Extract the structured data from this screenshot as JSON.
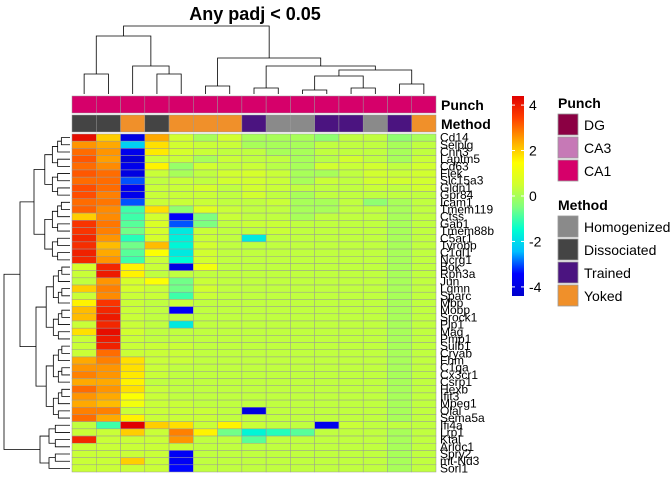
{
  "chart_data": {
    "type": "heatmap",
    "title": "Any padj < 0.05",
    "annotation_rows": [
      "Punch",
      "Method"
    ],
    "columns": [
      {
        "punch": "CA1",
        "method": "Dissociated"
      },
      {
        "punch": "CA1",
        "method": "Dissociated"
      },
      {
        "punch": "CA1",
        "method": "Yoked"
      },
      {
        "punch": "CA1",
        "method": "Dissociated"
      },
      {
        "punch": "CA1",
        "method": "Yoked"
      },
      {
        "punch": "CA1",
        "method": "Yoked"
      },
      {
        "punch": "CA1",
        "method": "Yoked"
      },
      {
        "punch": "CA1",
        "method": "Trained"
      },
      {
        "punch": "CA1",
        "method": "Homogenized"
      },
      {
        "punch": "CA1",
        "method": "Homogenized"
      },
      {
        "punch": "CA1",
        "method": "Trained"
      },
      {
        "punch": "CA1",
        "method": "Trained"
      },
      {
        "punch": "CA1",
        "method": "Homogenized"
      },
      {
        "punch": "CA1",
        "method": "Trained"
      },
      {
        "punch": "CA1",
        "method": "Yoked"
      }
    ],
    "genes": [
      "Cd14",
      "Selplg",
      "Cnn3",
      "Laptm5",
      "Cd63",
      "Flek",
      "Slc15a3",
      "Gldn1",
      "Gpr84",
      "Icam1",
      "Tmem119",
      "Ctss",
      "Gab1",
      "Tmem88b",
      "C5ar1",
      "Tyrobp",
      "C1ql1",
      "Ncrg1",
      "Bok",
      "Rph3a",
      "Jun",
      "Lgmn",
      "Sparc",
      "Mbp",
      "Mobp",
      "Srock1",
      "Plp1",
      "Mag",
      "Pmp1",
      "Sulb1",
      "Cryab",
      "Fhm",
      "C1qa",
      "Cx3cr1",
      "Csrp1",
      "Hexb",
      "Ifit3",
      "Mpeg1",
      "Olal",
      "Sema5a",
      "Ifi4a",
      "Lrp1",
      "Ktal",
      "Arldc1",
      "Spry2",
      "mt-Nd3",
      "Sorl1"
    ],
    "values": [
      [
        4.2,
        2.0,
        -4.0,
        2.4,
        0.5,
        0.0,
        0.5,
        0.0,
        0.0,
        0.0,
        -0.3,
        0.3,
        0.3,
        -0.3,
        0.0
      ],
      [
        2.6,
        2.4,
        -2.2,
        1.8,
        0.5,
        0.4,
        0.4,
        0.0,
        0.0,
        0.0,
        0.3,
        0.3,
        0.3,
        0.0,
        0.3
      ],
      [
        3.0,
        2.6,
        -3.8,
        1.7,
        0.6,
        0.4,
        0.3,
        0.3,
        0.0,
        0.0,
        0.3,
        0.3,
        0.3,
        0.0,
        0.3
      ],
      [
        3.2,
        2.5,
        -4.2,
        0.4,
        0.4,
        0.0,
        0.4,
        0.3,
        0.3,
        0.0,
        0.2,
        0.5,
        0.3,
        0.0,
        0.4
      ],
      [
        3.0,
        2.7,
        -3.8,
        1.6,
        -0.2,
        0.5,
        0.3,
        0.4,
        0.2,
        0.0,
        0.5,
        0.4,
        0.5,
        0.3,
        0.5
      ],
      [
        3.2,
        3.0,
        -4.0,
        0.4,
        0.0,
        0.3,
        0.5,
        0.6,
        0.4,
        0.0,
        0.0,
        0.3,
        0.5,
        0.4,
        0.5
      ],
      [
        3.0,
        3.0,
        -3.0,
        0.3,
        0.4,
        0.3,
        0.5,
        0.5,
        0.4,
        0.0,
        0.4,
        0.3,
        0.5,
        0.5,
        0.5
      ],
      [
        3.3,
        3.0,
        -3.8,
        0.4,
        0.4,
        0.6,
        0.3,
        0.5,
        0.4,
        0.3,
        0.3,
        0.3,
        0.4,
        0.3,
        0.5
      ],
      [
        3.3,
        2.8,
        -3.8,
        0.4,
        0.4,
        0.4,
        0.3,
        0.5,
        0.3,
        0.0,
        0.3,
        0.3,
        0.3,
        0.3,
        0.3
      ],
      [
        3.0,
        2.9,
        -3.0,
        0.4,
        0.4,
        0.4,
        0.3,
        0.3,
        0.4,
        0.0,
        0.0,
        0.3,
        -0.3,
        0.0,
        0.3
      ],
      [
        3.1,
        2.7,
        -1.0,
        1.8,
        -0.3,
        0.8,
        0.4,
        0.3,
        0.3,
        0.0,
        0.0,
        0.3,
        0.3,
        0.0,
        0.3
      ],
      [
        2.0,
        2.7,
        -1.0,
        0.5,
        -3.5,
        -0.5,
        0.4,
        0.3,
        0.3,
        0.0,
        0.3,
        0.3,
        0.3,
        0.0,
        0.3
      ],
      [
        3.6,
        2.9,
        -0.8,
        0.7,
        -3.0,
        -0.5,
        0.3,
        0.4,
        0.4,
        0.3,
        0.3,
        0.3,
        0.3,
        0.0,
        0.3
      ],
      [
        3.6,
        2.8,
        -0.6,
        0.6,
        -1.8,
        0.4,
        0.3,
        0.3,
        0.4,
        0.3,
        0.3,
        0.3,
        0.3,
        0.0,
        0.3
      ],
      [
        3.8,
        2.6,
        -1.2,
        0.6,
        -1.7,
        0.4,
        0.3,
        -1.8,
        0.3,
        0.3,
        0.3,
        0.3,
        0.3,
        0.0,
        0.3
      ],
      [
        3.7,
        2.2,
        -0.6,
        2.2,
        -1.6,
        0.5,
        0.3,
        0.3,
        0.3,
        0.3,
        0.3,
        0.3,
        0.3,
        0.0,
        0.3
      ],
      [
        3.9,
        2.4,
        -0.8,
        1.4,
        -1.8,
        0.5,
        0.3,
        0.3,
        0.3,
        0.3,
        0.3,
        0.3,
        0.3,
        0.0,
        0.3
      ],
      [
        3.8,
        2.6,
        -1.0,
        0.4,
        -1.5,
        0.5,
        0.3,
        0.3,
        0.3,
        0.3,
        0.3,
        0.3,
        0.3,
        0.0,
        0.3
      ],
      [
        0.6,
        3.8,
        1.6,
        0.4,
        -4.0,
        1.2,
        0.3,
        0.3,
        0.3,
        0.3,
        0.3,
        0.3,
        0.3,
        0.0,
        0.3
      ],
      [
        0.4,
        4.0,
        1.6,
        0.3,
        0.3,
        0.3,
        0.3,
        0.3,
        0.3,
        0.3,
        0.3,
        0.3,
        0.3,
        0.0,
        0.3
      ],
      [
        0.3,
        2.6,
        0.6,
        1.4,
        -0.6,
        0.4,
        0.3,
        0.3,
        0.3,
        0.3,
        0.3,
        0.3,
        0.3,
        0.0,
        0.3
      ],
      [
        2.0,
        2.8,
        0.6,
        0.4,
        -0.6,
        0.5,
        0.3,
        0.3,
        0.3,
        0.3,
        0.3,
        0.3,
        0.3,
        0.0,
        0.3
      ],
      [
        0.4,
        2.7,
        0.4,
        0.4,
        -1.0,
        0.4,
        0.3,
        0.3,
        0.3,
        0.3,
        0.3,
        0.3,
        0.3,
        0.0,
        0.3
      ],
      [
        1.6,
        3.6,
        0.4,
        0.3,
        0.4,
        0.3,
        0.3,
        0.3,
        0.3,
        0.3,
        0.3,
        0.3,
        0.3,
        0.0,
        0.3
      ],
      [
        2.2,
        3.8,
        0.4,
        0.3,
        -3.6,
        0.3,
        0.3,
        0.3,
        0.3,
        0.3,
        0.3,
        0.3,
        0.3,
        0.0,
        0.3
      ],
      [
        2.2,
        4.0,
        0.4,
        0.3,
        0.3,
        0.3,
        0.3,
        0.3,
        0.3,
        0.3,
        0.3,
        0.3,
        0.3,
        0.0,
        0.3
      ],
      [
        0.4,
        3.8,
        0.4,
        0.3,
        -1.8,
        0.3,
        0.3,
        0.3,
        0.3,
        0.3,
        0.3,
        0.3,
        0.3,
        0.0,
        0.3
      ],
      [
        1.8,
        4.2,
        0.5,
        0.3,
        0.3,
        0.3,
        0.3,
        0.3,
        0.3,
        0.3,
        0.3,
        0.3,
        0.3,
        0.0,
        0.3
      ],
      [
        0.4,
        4.0,
        0.4,
        0.3,
        0.3,
        0.3,
        0.3,
        0.3,
        0.3,
        0.3,
        0.3,
        0.3,
        0.3,
        0.0,
        0.3
      ],
      [
        0.4,
        3.9,
        0.4,
        0.4,
        0.4,
        0.3,
        0.3,
        0.3,
        0.3,
        0.3,
        0.3,
        0.3,
        0.3,
        0.0,
        0.3
      ],
      [
        0.4,
        3.0,
        0.4,
        0.4,
        0.4,
        0.3,
        0.3,
        0.3,
        0.3,
        0.3,
        0.3,
        0.3,
        0.3,
        0.0,
        0.3
      ],
      [
        2.4,
        2.8,
        1.8,
        0.4,
        0.4,
        0.3,
        0.3,
        0.3,
        0.3,
        0.3,
        0.3,
        0.3,
        0.3,
        0.0,
        0.3
      ],
      [
        2.6,
        2.6,
        1.8,
        0.4,
        0.3,
        0.3,
        0.3,
        0.3,
        0.3,
        0.3,
        0.3,
        0.3,
        0.3,
        0.0,
        0.3
      ],
      [
        2.8,
        2.6,
        1.7,
        0.4,
        0.3,
        0.3,
        0.3,
        0.3,
        0.3,
        0.3,
        0.3,
        0.3,
        0.3,
        0.0,
        0.3
      ],
      [
        2.4,
        2.4,
        1.6,
        0.3,
        0.3,
        0.3,
        0.3,
        0.3,
        0.3,
        0.3,
        0.3,
        0.3,
        0.3,
        0.0,
        0.3
      ],
      [
        3.0,
        2.6,
        1.8,
        0.4,
        0.3,
        0.3,
        0.3,
        0.3,
        0.3,
        0.3,
        0.3,
        0.3,
        0.3,
        0.0,
        0.3
      ],
      [
        2.6,
        2.4,
        1.4,
        0.4,
        0.3,
        0.3,
        0.3,
        0.3,
        0.3,
        0.3,
        0.3,
        0.3,
        0.3,
        0.0,
        0.3
      ],
      [
        2.4,
        2.2,
        1.2,
        0.4,
        0.4,
        0.3,
        0.3,
        0.3,
        0.3,
        0.3,
        0.3,
        0.3,
        0.3,
        0.0,
        0.3
      ],
      [
        2.8,
        2.8,
        0.4,
        0.4,
        0.4,
        0.4,
        0.3,
        -4.0,
        0.3,
        0.3,
        0.3,
        0.3,
        0.3,
        0.0,
        0.3
      ],
      [
        3.0,
        2.4,
        1.6,
        0.4,
        0.4,
        0.4,
        0.3,
        0.3,
        0.3,
        0.3,
        0.3,
        0.3,
        0.3,
        0.0,
        0.3
      ],
      [
        0.3,
        -1.0,
        4.4,
        2.0,
        1.8,
        0.4,
        1.6,
        0.4,
        0.3,
        0.3,
        -3.8,
        0.4,
        0.3,
        0.3,
        0.3
      ],
      [
        0.4,
        0.4,
        2.0,
        0.4,
        2.8,
        1.6,
        -0.6,
        -1.6,
        -1.2,
        -0.8,
        0.3,
        0.3,
        0.3,
        0.0,
        0.3
      ],
      [
        3.8,
        0.4,
        0.4,
        0.4,
        2.6,
        0.3,
        0.3,
        -0.8,
        0.3,
        0.3,
        0.3,
        0.3,
        0.3,
        0.0,
        0.3
      ],
      [
        0.4,
        0.4,
        0.4,
        0.4,
        0.4,
        0.3,
        0.3,
        0.3,
        0.3,
        0.3,
        0.3,
        0.3,
        0.3,
        0.0,
        0.3
      ],
      [
        0.4,
        0.4,
        0.4,
        0.4,
        -3.6,
        0.3,
        0.3,
        0.3,
        0.3,
        0.3,
        0.3,
        0.3,
        0.3,
        0.0,
        0.3
      ],
      [
        0.4,
        0.4,
        2.0,
        0.4,
        -3.6,
        0.3,
        0.3,
        0.3,
        0.3,
        0.3,
        0.3,
        0.3,
        0.3,
        0.0,
        0.3
      ],
      [
        0.4,
        0.4,
        0.4,
        0.4,
        -3.4,
        0.3,
        0.3,
        0.3,
        0.3,
        0.3,
        0.3,
        0.3,
        0.3,
        0.0,
        0.3
      ]
    ],
    "color_scale": {
      "min": -4.4,
      "max": 4.4,
      "ticks": [
        4,
        2,
        0,
        -2,
        -4
      ],
      "colors": [
        "#0000cd",
        "#0000ff",
        "#00bfff",
        "#00ffd0",
        "#7fff7f",
        "#d0ff30",
        "#ffff00",
        "#ffa500",
        "#ff4000",
        "#e00000"
      ]
    },
    "legend": {
      "punch": {
        "title": "Punch",
        "items": [
          {
            "label": "DG",
            "color": "#8b0043"
          },
          {
            "label": "CA3",
            "color": "#c679b6"
          },
          {
            "label": "CA1",
            "color": "#d6006a"
          }
        ]
      },
      "method": {
        "title": "Method",
        "items": [
          {
            "label": "Homogenized",
            "color": "#8a8a8a"
          },
          {
            "label": "Dissociated",
            "color": "#444444"
          },
          {
            "label": "Trained",
            "color": "#4b1480"
          },
          {
            "label": "Yoked",
            "color": "#f0902a"
          }
        ]
      }
    },
    "grid": true,
    "legend_placement": "right",
    "dendrograms": [
      "top",
      "left"
    ]
  }
}
